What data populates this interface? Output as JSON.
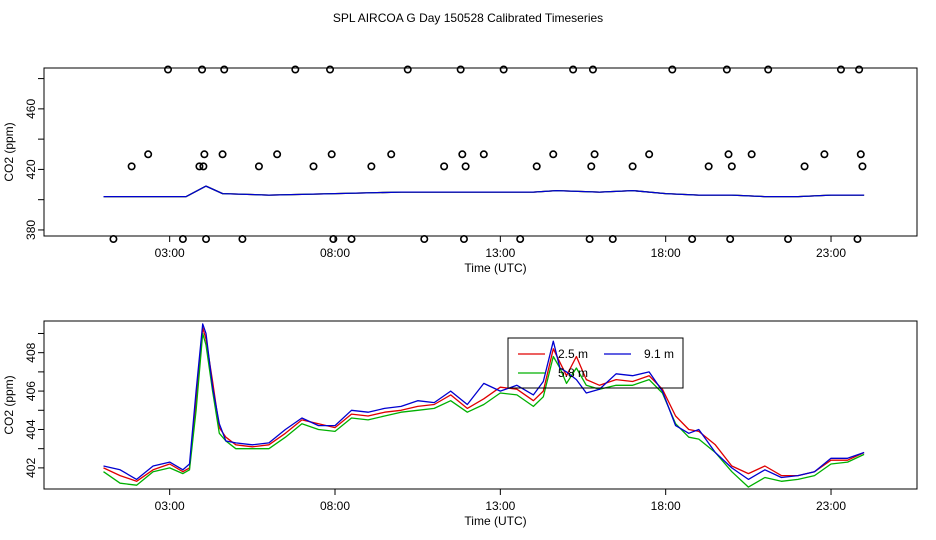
{
  "figure_title": "SPL AIRCOA G  Day 150528  Calibrated Timeseries",
  "colors": {
    "red": "#e00000",
    "green": "#00b000",
    "blue": "#0000d0",
    "axis": "#000000"
  },
  "chart_data": [
    {
      "type": "scatter+line",
      "title": "",
      "xlabel": "Time (UTC)",
      "ylabel": "CO2 (ppm)",
      "xlim": [
        -0.8,
        25.6
      ],
      "ylim": [
        376,
        487
      ],
      "x_ticks": [
        3,
        8,
        13,
        18,
        23
      ],
      "x_tick_labels": [
        "03:00",
        "08:00",
        "13:00",
        "18:00",
        "23:00"
      ],
      "y_ticks": [
        380,
        420,
        460
      ],
      "y_tick_labels": [
        "380",
        "420",
        "460"
      ],
      "y_minor_ticks": [
        400,
        440,
        480
      ],
      "calibration_points": {
        "marker": "open-circle",
        "x": [
          1.3,
          1.85,
          2.35,
          2.95,
          3.4,
          3.9,
          3.98,
          4.02,
          4.05,
          4.1,
          4.6,
          4.65,
          5.2,
          5.7,
          6.25,
          6.8,
          7.35,
          7.85,
          7.9,
          7.95,
          8.5,
          9.1,
          9.7,
          10.2,
          10.7,
          11.3,
          11.8,
          11.85,
          11.9,
          11.95,
          12.5,
          13.1,
          13.6,
          14.1,
          14.6,
          15.2,
          15.7,
          15.75,
          15.8,
          15.85,
          16.4,
          17.0,
          17.5,
          18.2,
          18.8,
          19.3,
          19.85,
          19.9,
          19.95,
          20.0,
          20.6,
          21.1,
          21.7,
          22.2,
          22.8,
          23.3,
          23.8,
          23.85,
          23.9,
          23.95
        ],
        "y": [
          374,
          422,
          430,
          486,
          374,
          422,
          486,
          422,
          430,
          374,
          430,
          486,
          374,
          422,
          430,
          486,
          422,
          486,
          430,
          374,
          374,
          422,
          430,
          486,
          374,
          422,
          486,
          430,
          374,
          422,
          430,
          486,
          374,
          422,
          430,
          486,
          374,
          422,
          486,
          430,
          374,
          422,
          430,
          486,
          374,
          422,
          486,
          430,
          374,
          422,
          430,
          486,
          374,
          422,
          430,
          486,
          374,
          486,
          430,
          422
        ]
      },
      "series": [
        {
          "name": "2.5 m",
          "color": "#e00000",
          "x": [
            1,
            3.5,
            4.1,
            4.6,
            6,
            8,
            10,
            12,
            14,
            14.7,
            16,
            17,
            18,
            19,
            20,
            21,
            22,
            23,
            24
          ],
          "y": [
            402,
            402,
            409,
            404,
            403,
            404,
            405,
            405,
            405,
            406,
            405,
            406,
            404,
            403,
            403,
            402,
            402,
            403,
            403
          ]
        },
        {
          "name": "5.8 m",
          "color": "#00b000",
          "x": [
            1,
            3.5,
            4.1,
            4.6,
            6,
            8,
            10,
            12,
            14,
            14.7,
            16,
            17,
            18,
            19,
            20,
            21,
            22,
            23,
            24
          ],
          "y": [
            402,
            402,
            409,
            404,
            403,
            404,
            405,
            405,
            405,
            406,
            405,
            406,
            404,
            403,
            403,
            402,
            402,
            403,
            403
          ]
        },
        {
          "name": "9.1 m",
          "color": "#0000d0",
          "x": [
            1,
            3.5,
            4.1,
            4.6,
            6,
            8,
            10,
            12,
            14,
            14.7,
            16,
            17,
            18,
            19,
            20,
            21,
            22,
            23,
            24
          ],
          "y": [
            402,
            402,
            409,
            404,
            403,
            404,
            405,
            405,
            405,
            406,
            405,
            406,
            404,
            403,
            403,
            402,
            402,
            403,
            403
          ]
        }
      ]
    },
    {
      "type": "line",
      "title": "",
      "xlabel": "Time (UTC)",
      "ylabel": "CO2 (ppm)",
      "xlim": [
        -0.8,
        25.6
      ],
      "ylim": [
        400.9,
        409.65
      ],
      "x_ticks": [
        3,
        8,
        13,
        18,
        23
      ],
      "x_tick_labels": [
        "03:00",
        "08:00",
        "13:00",
        "18:00",
        "23:00"
      ],
      "y_ticks": [
        402,
        404,
        406,
        408
      ],
      "y_tick_labels": [
        "402",
        "404",
        "406",
        "408"
      ],
      "y_minor_ticks": [
        403,
        405,
        407,
        409
      ],
      "legend": {
        "position": "top-center-right",
        "entries": [
          "2.5 m",
          "5.8 m",
          "9.1 m"
        ]
      },
      "series": [
        {
          "name": "2.5 m",
          "color": "#e00000",
          "x": [
            1,
            1.5,
            2,
            2.5,
            3,
            3.4,
            3.6,
            3.8,
            4.0,
            4.1,
            4.3,
            4.5,
            4.7,
            5,
            5.5,
            6,
            6.5,
            7,
            7.5,
            8,
            8.5,
            9,
            9.5,
            10,
            10.5,
            11,
            11.5,
            12,
            12.5,
            13,
            13.5,
            14,
            14.3,
            14.6,
            14.8,
            15,
            15.3,
            15.6,
            16,
            16.5,
            17,
            17.5,
            17.9,
            18.3,
            18.7,
            19,
            19.5,
            20,
            20.5,
            21,
            21.5,
            22,
            22.5,
            23,
            23.5,
            24
          ],
          "y": [
            402.0,
            401.6,
            401.3,
            401.9,
            402.2,
            401.8,
            402.0,
            405.5,
            409.3,
            408.7,
            406.5,
            404.1,
            403.6,
            403.2,
            403.1,
            403.2,
            403.8,
            404.5,
            404.3,
            404.1,
            404.8,
            404.7,
            404.9,
            405.0,
            405.2,
            405.3,
            405.8,
            405.1,
            405.6,
            406.2,
            406.1,
            405.5,
            406.0,
            408.2,
            407.5,
            406.8,
            407.8,
            406.6,
            406.3,
            406.6,
            406.5,
            406.8,
            406.1,
            404.7,
            404.0,
            403.9,
            403.2,
            402.1,
            401.7,
            402.1,
            401.6,
            401.6,
            401.8,
            402.4,
            402.4,
            402.8
          ]
        },
        {
          "name": "5.8 m",
          "color": "#00b000",
          "x": [
            1,
            1.5,
            2,
            2.5,
            3,
            3.4,
            3.6,
            3.8,
            4.0,
            4.1,
            4.3,
            4.5,
            4.7,
            5,
            5.5,
            6,
            6.5,
            7,
            7.5,
            8,
            8.5,
            9,
            9.5,
            10,
            10.5,
            11,
            11.5,
            12,
            12.5,
            13,
            13.5,
            14,
            14.3,
            14.6,
            14.8,
            15,
            15.3,
            15.6,
            16,
            16.5,
            17,
            17.5,
            17.9,
            18.3,
            18.7,
            19,
            19.5,
            20,
            20.5,
            21,
            21.5,
            22,
            22.5,
            23,
            23.5,
            24
          ],
          "y": [
            401.8,
            401.2,
            401.1,
            401.8,
            402.0,
            401.7,
            401.9,
            405.0,
            409.0,
            408.4,
            406.0,
            403.8,
            403.4,
            403.0,
            403.0,
            403.0,
            403.6,
            404.3,
            404.0,
            403.9,
            404.6,
            404.5,
            404.7,
            404.9,
            405.0,
            405.1,
            405.5,
            404.9,
            405.3,
            405.9,
            405.8,
            405.2,
            405.7,
            407.8,
            407.2,
            406.4,
            407.2,
            406.3,
            406.1,
            406.3,
            406.3,
            406.6,
            405.9,
            404.3,
            403.6,
            403.5,
            402.8,
            401.8,
            401.0,
            401.5,
            401.3,
            401.4,
            401.6,
            402.2,
            402.3,
            402.7
          ]
        },
        {
          "name": "9.1 m",
          "color": "#0000d0",
          "x": [
            1,
            1.5,
            2,
            2.5,
            3,
            3.4,
            3.6,
            3.8,
            4.0,
            4.1,
            4.3,
            4.5,
            4.7,
            5,
            5.5,
            6,
            6.5,
            7,
            7.5,
            8,
            8.5,
            9,
            9.5,
            10,
            10.5,
            11,
            11.5,
            12,
            12.5,
            13,
            13.5,
            14,
            14.3,
            14.6,
            14.8,
            15,
            15.3,
            15.6,
            16,
            16.5,
            17,
            17.5,
            17.9,
            18.3,
            18.7,
            19,
            19.5,
            20,
            20.5,
            21,
            21.5,
            22,
            22.5,
            23,
            23.5,
            24
          ],
          "y": [
            402.1,
            401.9,
            401.4,
            402.1,
            402.3,
            401.9,
            402.2,
            406.0,
            409.5,
            409.0,
            406.2,
            404.3,
            403.4,
            403.3,
            403.2,
            403.3,
            404.0,
            404.6,
            404.2,
            404.2,
            405.0,
            404.9,
            405.1,
            405.2,
            405.5,
            405.4,
            406.0,
            405.3,
            406.4,
            406.0,
            406.3,
            405.8,
            406.5,
            408.6,
            407.2,
            407.0,
            406.6,
            405.9,
            406.1,
            406.9,
            406.8,
            407.0,
            406.0,
            404.2,
            403.8,
            404.0,
            402.8,
            402.0,
            401.4,
            401.9,
            401.5,
            401.6,
            401.8,
            402.5,
            402.5,
            402.8
          ]
        }
      ]
    }
  ]
}
